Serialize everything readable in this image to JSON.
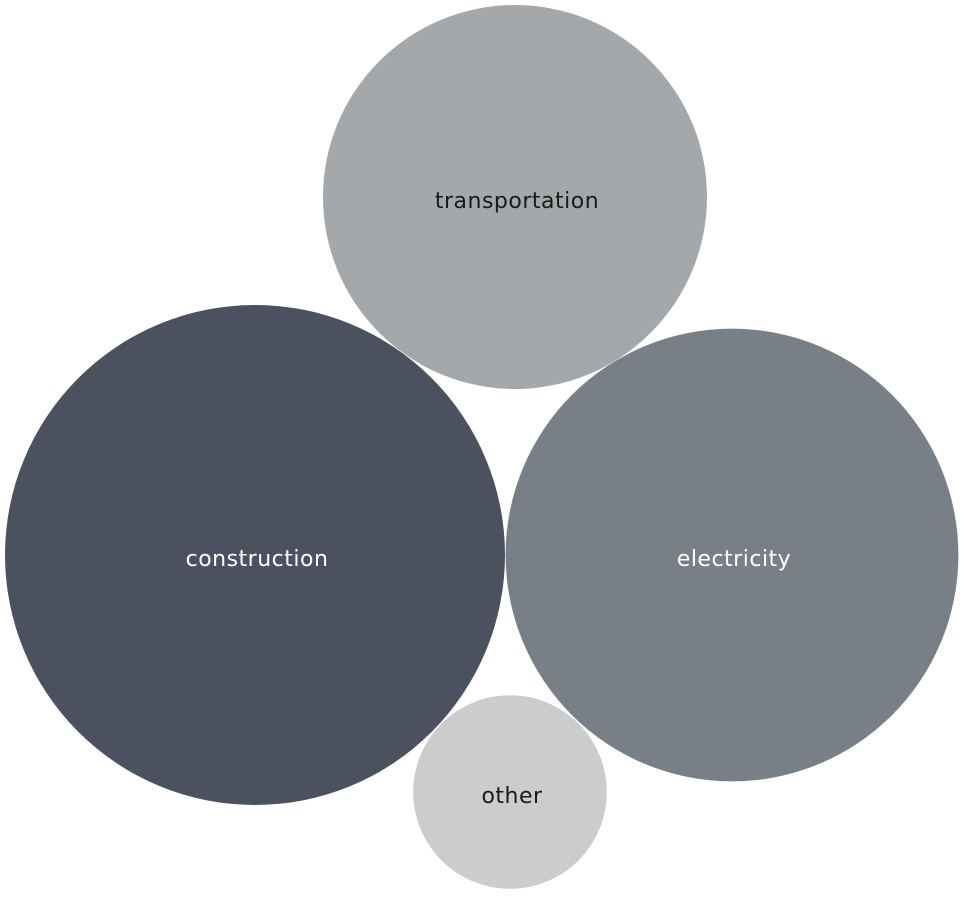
{
  "chart_data": {
    "type": "bubble",
    "title": "",
    "legend": "none",
    "bubbles": [
      {
        "label": "construction",
        "value": 100,
        "color": "#4b515e",
        "text_color": "#ffffff"
      },
      {
        "label": "electricity",
        "value": 82,
        "color": "#787f87",
        "text_color": "#ffffff"
      },
      {
        "label": "transportation",
        "value": 59,
        "color": "#a5a8ab",
        "text_color": "#1a1a1a"
      },
      {
        "label": "other",
        "value": 15,
        "color": "#cccccc",
        "text_color": "#1a1a1a"
      }
    ]
  }
}
